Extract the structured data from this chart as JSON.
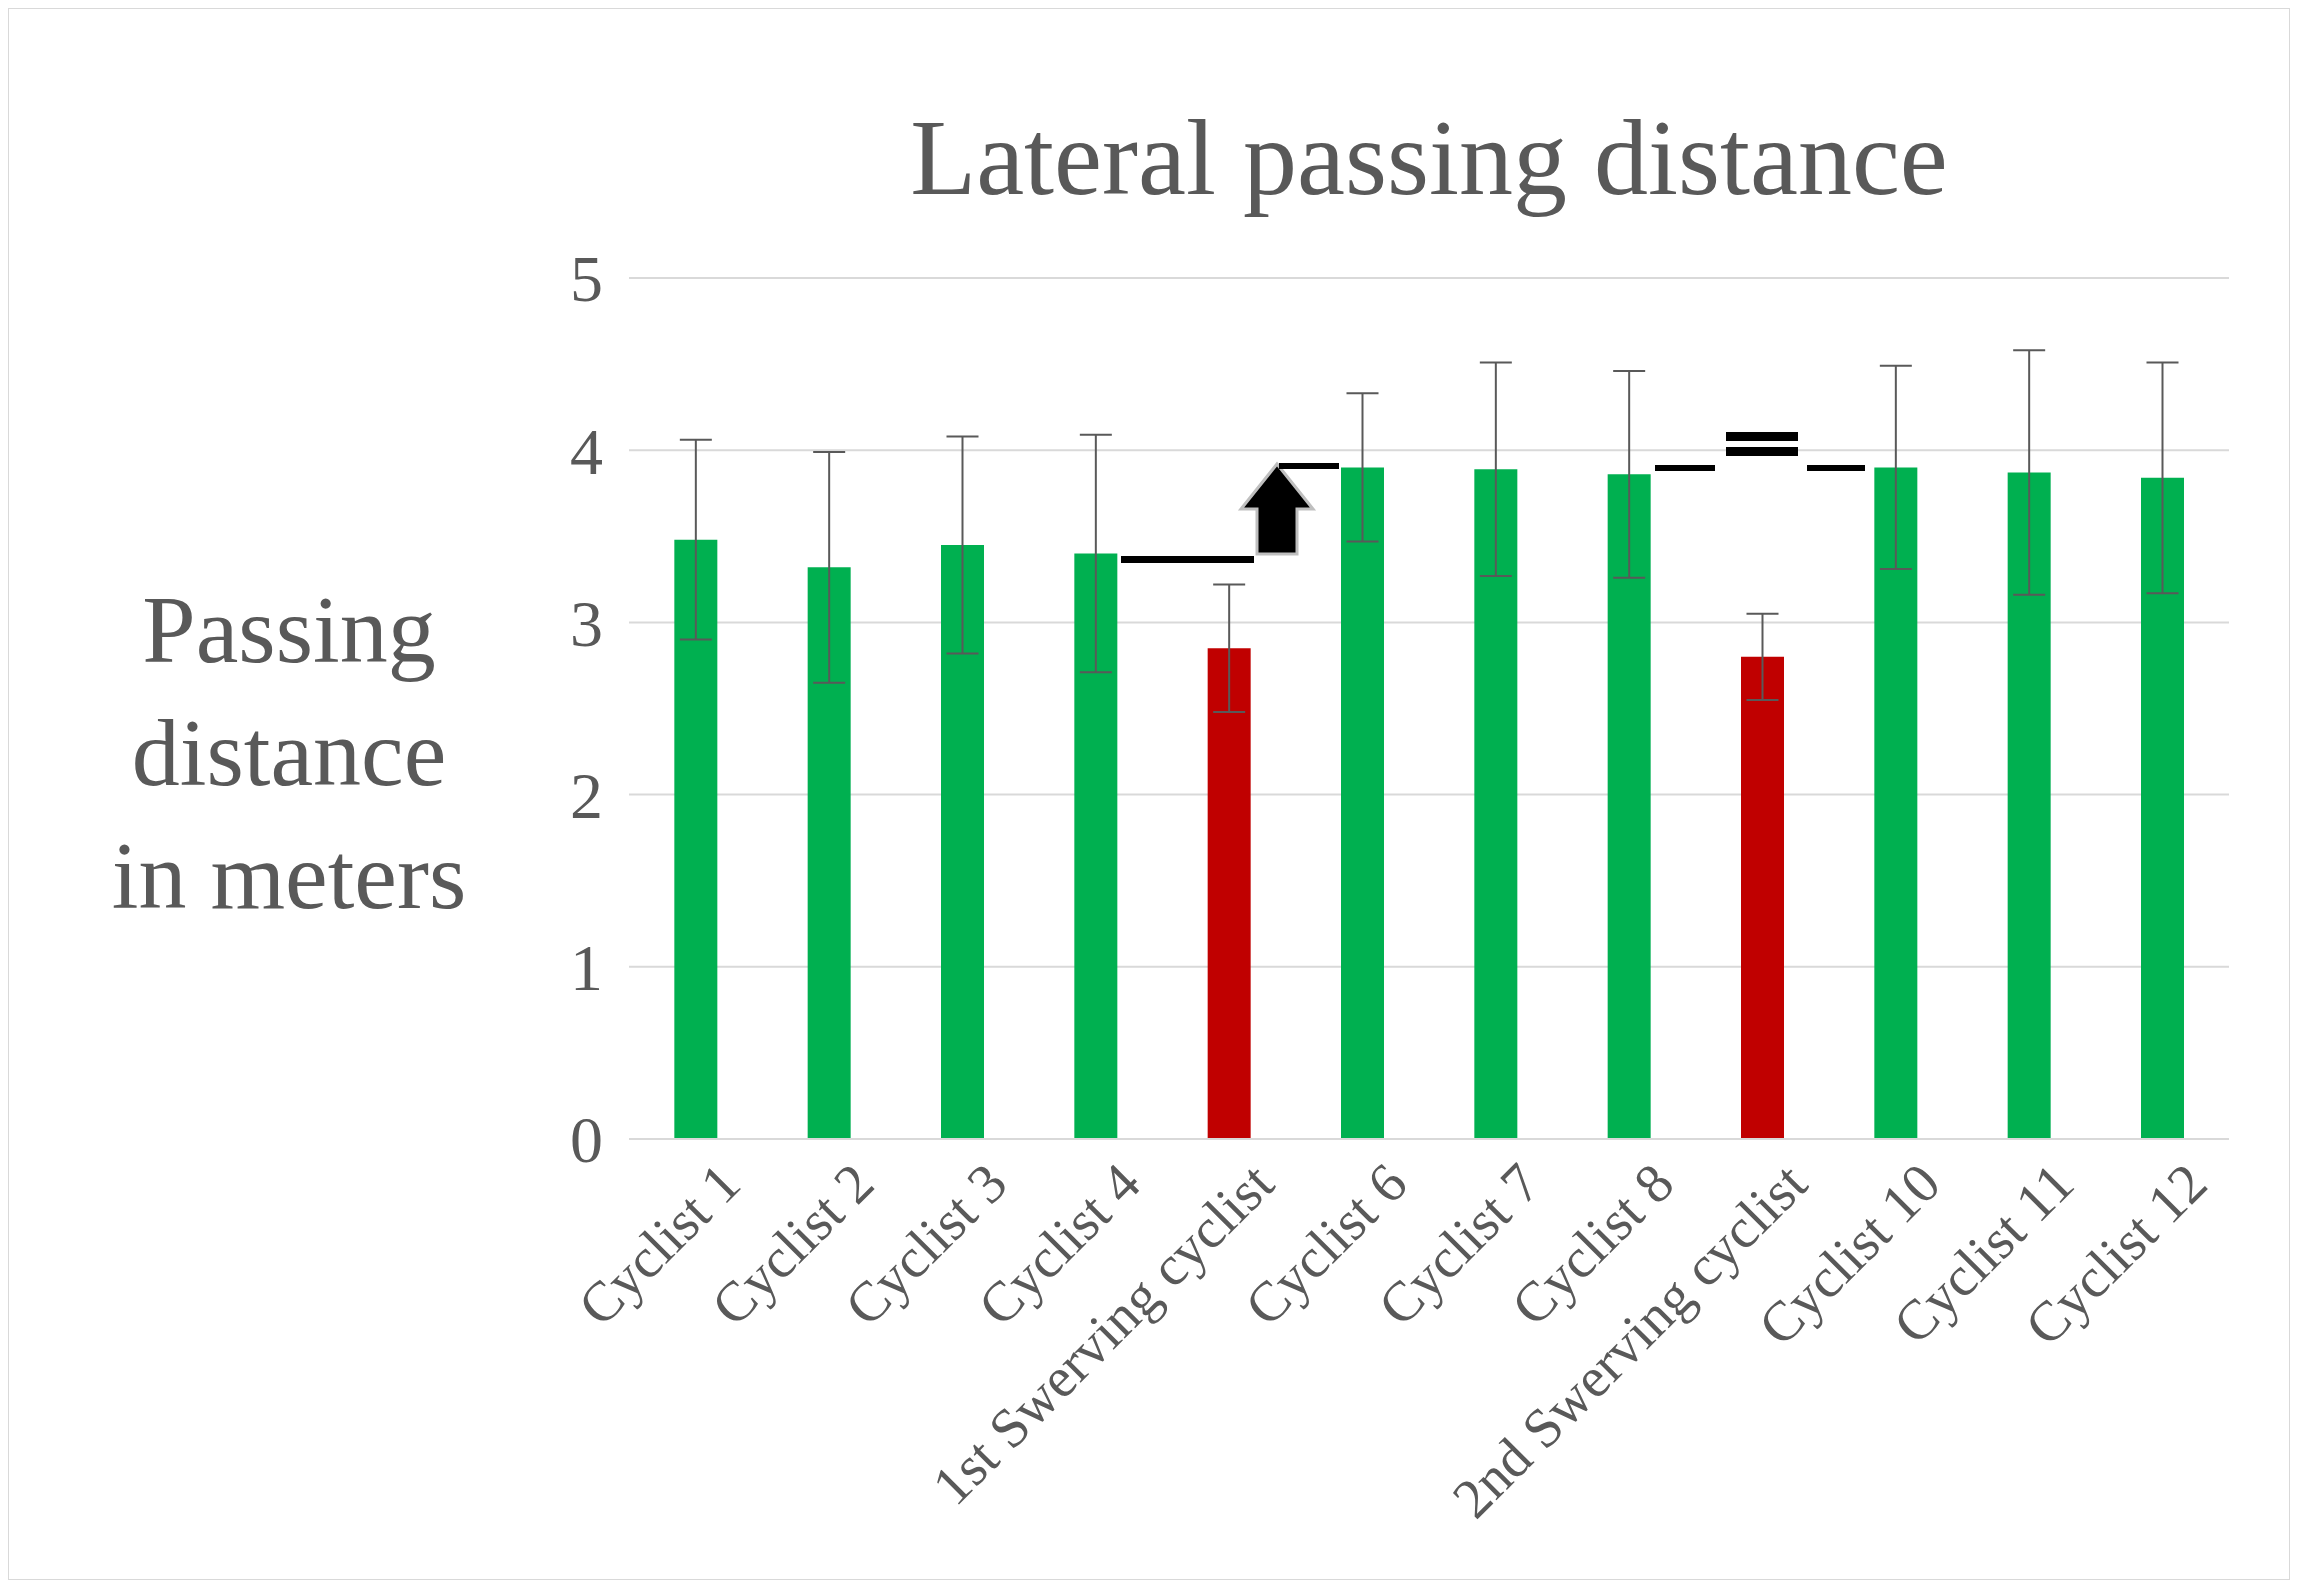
{
  "chart_data": {
    "type": "bar",
    "title": "Lateral passing distance",
    "ylabel": "Passing distance in meters",
    "categories": [
      "Cyclist 1",
      "Cyclist 2",
      "Cyclist 3",
      "Cyclist 4",
      "1st Swerving cyclist",
      "Cyclist 6",
      "Cyclist 7",
      "Cyclist 8",
      "2nd Swerving cyclist",
      "Cyclist 10",
      "Cyclist 11",
      "Cyclist 12"
    ],
    "values": [
      3.48,
      3.32,
      3.45,
      3.4,
      2.85,
      3.9,
      3.89,
      3.86,
      2.8,
      3.9,
      3.87,
      3.84
    ],
    "colors": [
      "#00b050",
      "#00b050",
      "#00b050",
      "#00b050",
      "#c00000",
      "#00b050",
      "#00b050",
      "#00b050",
      "#c00000",
      "#00b050",
      "#00b050",
      "#00b050"
    ],
    "errors": [
      0.58,
      0.67,
      0.63,
      0.69,
      0.37,
      0.43,
      0.62,
      0.6,
      0.25,
      0.59,
      0.71,
      0.67
    ],
    "ylim": [
      0,
      5
    ],
    "yticks": [
      0,
      1,
      2,
      3,
      4,
      5
    ],
    "grid": "y",
    "legend": false
  }
}
